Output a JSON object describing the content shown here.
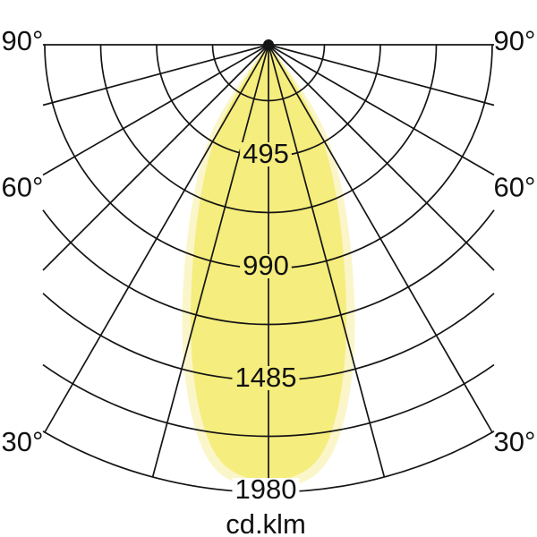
{
  "chart_data": {
    "type": "line",
    "subtype": "polar-photometric-distribution",
    "title": "",
    "units_label": "cd.klm",
    "radial_max": 1980,
    "radial_ticks": [
      495,
      990,
      1485,
      1980
    ],
    "radial_tick_labels": [
      "495",
      "990",
      "1485",
      "1980"
    ],
    "minor_arc_step": 247.5,
    "angle_tick_step_deg": 15,
    "angle_range_deg": [
      -90,
      90
    ],
    "angle_labels": [
      {
        "deg": 90,
        "text": "90°"
      },
      {
        "deg": 60,
        "text": "60°"
      },
      {
        "deg": 30,
        "text": "30°"
      }
    ],
    "grid": true,
    "legend": "none",
    "beam_profile_cd_per_klm": [
      [
        0,
        1935
      ],
      [
        2,
        1925
      ],
      [
        4,
        1905
      ],
      [
        6,
        1870
      ],
      [
        8,
        1800
      ],
      [
        10,
        1690
      ],
      [
        12,
        1555
      ],
      [
        14,
        1405
      ],
      [
        16,
        1250
      ],
      [
        18,
        1100
      ],
      [
        20,
        965
      ],
      [
        22,
        845
      ],
      [
        24,
        740
      ],
      [
        26,
        645
      ],
      [
        28,
        555
      ],
      [
        30,
        465
      ],
      [
        31,
        415
      ],
      [
        32,
        355
      ],
      [
        33,
        280
      ],
      [
        34,
        195
      ],
      [
        35,
        110
      ],
      [
        36,
        45
      ],
      [
        37,
        12
      ],
      [
        38,
        0
      ]
    ],
    "halo": {
      "angle_scale": 1.09,
      "intensity_scale": 1.02
    },
    "colors": {
      "beam": "#F5ED7D",
      "beam_halo": "#FBF6C9",
      "grid": "#141414",
      "text": "#111111",
      "background": "#FFFFFF"
    }
  }
}
